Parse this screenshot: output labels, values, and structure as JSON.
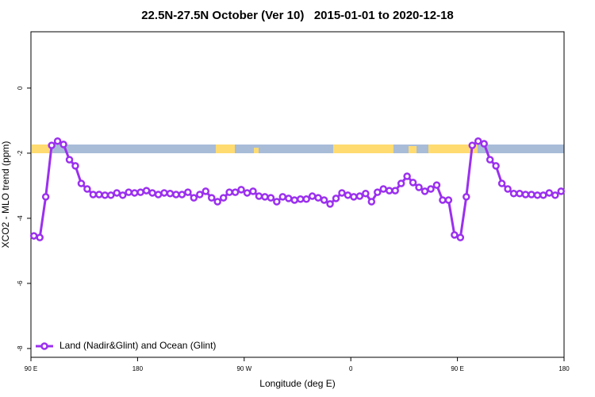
{
  "chart_data": {
    "type": "line",
    "title": "22.5N-27.5N October (Ver 10)   2015-01-01 to 2020-12-18",
    "xlabel": "Longitude (deg E)",
    "ylabel": "XCO2 - MLO trend (ppm)",
    "xlim": [
      90,
      540
    ],
    "ylim": [
      -8.27,
      1.73
    ],
    "xticks": [
      {
        "value": 90,
        "label": "90 E"
      },
      180,
      {
        "value": 270,
        "label": "90 W"
      },
      {
        "value": 360,
        "label": "0"
      },
      {
        "value": 450,
        "label": "90 E"
      },
      {
        "value": 540,
        "label": "180"
      }
    ],
    "yticks": [
      0,
      -2,
      -4,
      -6,
      -8
    ],
    "legend": "bottomleft",
    "x": [
      92.5,
      97.5,
      102.5,
      107.5,
      112.5,
      117.5,
      122.5,
      127.5,
      132.5,
      137.5,
      142.5,
      147.5,
      152.5,
      157.5,
      162.5,
      167.5,
      172.5,
      177.5,
      182.5,
      187.5,
      192.5,
      197.5,
      202.5,
      207.5,
      212.5,
      217.5,
      222.5,
      227.5,
      232.5,
      237.5,
      242.5,
      247.5,
      252.5,
      257.5,
      262.5,
      267.5,
      272.5,
      277.5,
      282.5,
      287.5,
      292.5,
      297.5,
      302.5,
      307.5,
      312.5,
      317.5,
      322.5,
      327.5,
      332.5,
      337.5,
      342.5,
      347.5,
      352.5,
      357.5,
      362.5,
      367.5,
      372.5,
      377.5,
      382.5,
      387.5,
      392.5,
      397.5,
      402.5,
      407.5,
      412.5,
      417.5,
      422.5,
      427.5,
      432.5,
      437.5,
      442.5,
      447.5,
      452.5,
      457.5,
      462.5,
      467.5,
      472.5,
      477.5,
      482.5,
      487.5,
      492.5,
      497.5,
      502.5,
      507.5,
      512.5,
      517.5,
      522.5,
      527.5,
      532.5,
      537.5
    ],
    "series": [
      {
        "name": "Land (Nadir&Glint) and Ocean (Glint)",
        "color": "#9b30ef",
        "values": [
          -4.54,
          -4.59,
          -3.34,
          -1.76,
          -1.63,
          -1.73,
          -2.2,
          -2.39,
          -2.93,
          -3.1,
          -3.27,
          -3.27,
          -3.29,
          -3.29,
          -3.22,
          -3.29,
          -3.2,
          -3.22,
          -3.2,
          -3.15,
          -3.22,
          -3.27,
          -3.22,
          -3.24,
          -3.27,
          -3.27,
          -3.2,
          -3.37,
          -3.27,
          -3.17,
          -3.37,
          -3.49,
          -3.37,
          -3.2,
          -3.2,
          -3.12,
          -3.22,
          -3.17,
          -3.32,
          -3.34,
          -3.37,
          -3.49,
          -3.34,
          -3.39,
          -3.44,
          -3.41,
          -3.41,
          -3.32,
          -3.37,
          -3.44,
          -3.56,
          -3.39,
          -3.22,
          -3.29,
          -3.34,
          -3.32,
          -3.24,
          -3.49,
          -3.2,
          -3.1,
          -3.15,
          -3.15,
          -2.93,
          -2.71,
          -2.9,
          -3.05,
          -3.17,
          -3.1,
          -2.98,
          -3.44,
          -3.44,
          -4.51,
          -4.59,
          -3.34,
          -1.76,
          -1.63,
          -1.71,
          -2.2,
          -2.39,
          -2.93,
          -3.1,
          -3.24,
          -3.24,
          -3.27,
          -3.27,
          -3.29,
          -3.29,
          -3.22,
          -3.29,
          -3.17
        ]
      }
    ]
  }
}
